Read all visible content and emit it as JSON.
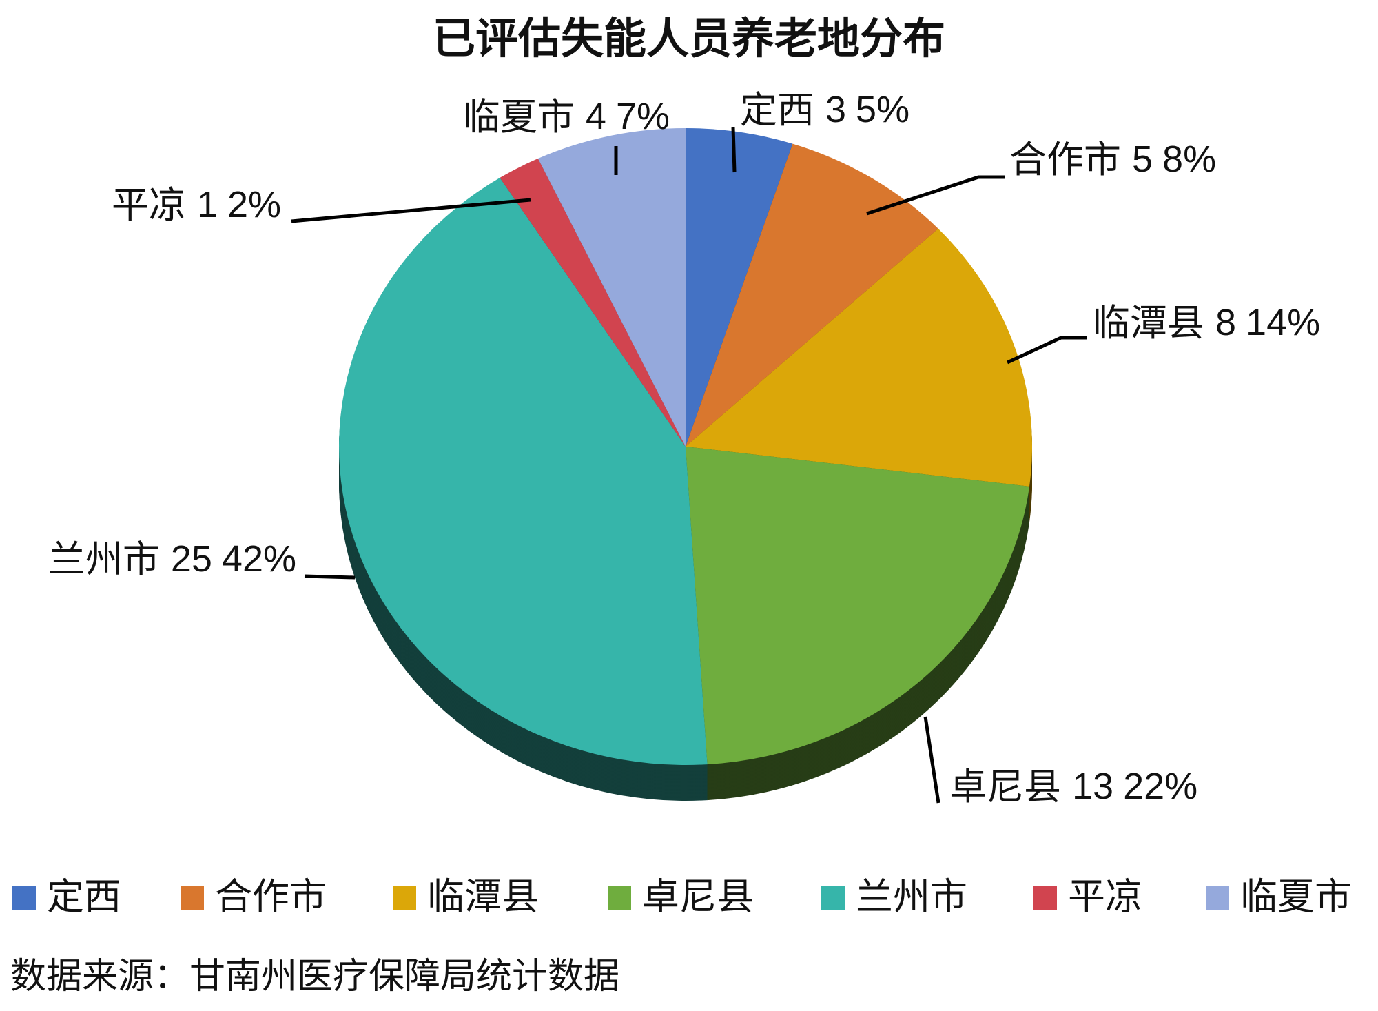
{
  "chart_data": {
    "type": "pie",
    "title": "已评估失能人员养老地分布",
    "categories": [
      "定西",
      "合作市",
      "临潭县",
      "卓尼县",
      "兰州市",
      "平凉",
      "临夏市"
    ],
    "counts": [
      3,
      5,
      8,
      13,
      25,
      1,
      4
    ],
    "values": [
      5,
      8,
      14,
      22,
      42,
      2,
      7
    ],
    "value_labels": [
      "5%",
      "8%",
      "14%",
      "22%",
      "42%",
      "2%",
      "7%"
    ],
    "colors": [
      "#4472c4",
      "#d9772e",
      "#dba709",
      "#6fad3e",
      "#36b5aa",
      "#d1444f",
      "#95a9dc"
    ],
    "legend": "bottom",
    "source": "数据来源：甘南州医疗保障局统计数据"
  }
}
